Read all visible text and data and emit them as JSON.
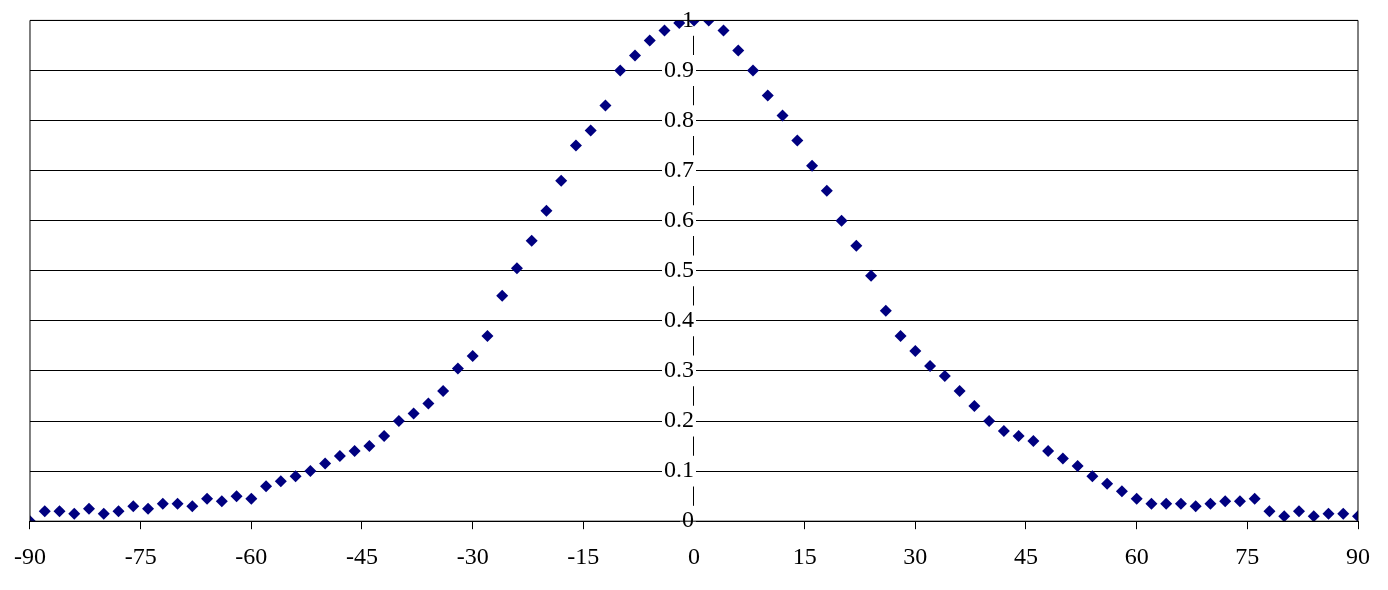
{
  "chart_data": {
    "type": "scatter",
    "marker": "diamond",
    "grid": "y",
    "x": [
      -90,
      -88,
      -86,
      -84,
      -82,
      -80,
      -78,
      -76,
      -74,
      -72,
      -70,
      -68,
      -66,
      -64,
      -62,
      -60,
      -58,
      -56,
      -54,
      -52,
      -50,
      -48,
      -46,
      -44,
      -42,
      -40,
      -38,
      -36,
      -34,
      -32,
      -30,
      -28,
      -26,
      -24,
      -22,
      -20,
      -18,
      -16,
      -14,
      -12,
      -10,
      -8,
      -6,
      -4,
      -2,
      0,
      2,
      4,
      6,
      8,
      10,
      12,
      14,
      16,
      18,
      20,
      22,
      24,
      26,
      28,
      30,
      32,
      34,
      36,
      38,
      40,
      42,
      44,
      46,
      48,
      50,
      52,
      54,
      56,
      58,
      60,
      62,
      64,
      66,
      68,
      70,
      72,
      74,
      76,
      78,
      80,
      82,
      84,
      86,
      88,
      90
    ],
    "series": [
      {
        "color": "#000080",
        "values": [
          0.0,
          0.02,
          0.02,
          0.015,
          0.025,
          0.015,
          0.02,
          0.03,
          0.025,
          0.035,
          0.035,
          0.03,
          0.045,
          0.04,
          0.05,
          0.045,
          0.07,
          0.08,
          0.09,
          0.1,
          0.115,
          0.13,
          0.14,
          0.15,
          0.17,
          0.2,
          0.215,
          0.235,
          0.26,
          0.305,
          0.33,
          0.37,
          0.45,
          0.505,
          0.56,
          0.62,
          0.68,
          0.75,
          0.78,
          0.83,
          0.9,
          0.93,
          0.96,
          0.98,
          0.995,
          1.0,
          1.0,
          0.98,
          0.94,
          0.9,
          0.85,
          0.81,
          0.76,
          0.71,
          0.66,
          0.6,
          0.55,
          0.49,
          0.42,
          0.37,
          0.34,
          0.31,
          0.29,
          0.26,
          0.23,
          0.2,
          0.18,
          0.17,
          0.16,
          0.14,
          0.125,
          0.11,
          0.09,
          0.075,
          0.06,
          0.045,
          0.035,
          0.035,
          0.035,
          0.03,
          0.035,
          0.04,
          0.04,
          0.045,
          0.02,
          0.01,
          0.02,
          0.01,
          0.015,
          0.015,
          0.01
        ]
      }
    ],
    "xlim": [
      -90,
      90
    ],
    "xticks": [
      -90,
      -75,
      -60,
      -45,
      -30,
      -15,
      0,
      15,
      30,
      45,
      60,
      75,
      90
    ],
    "ylim": [
      0,
      1
    ],
    "yticks": [
      0,
      0.1,
      0.2,
      0.3,
      0.4,
      0.5,
      0.6,
      0.7,
      0.8,
      0.9,
      1
    ]
  }
}
